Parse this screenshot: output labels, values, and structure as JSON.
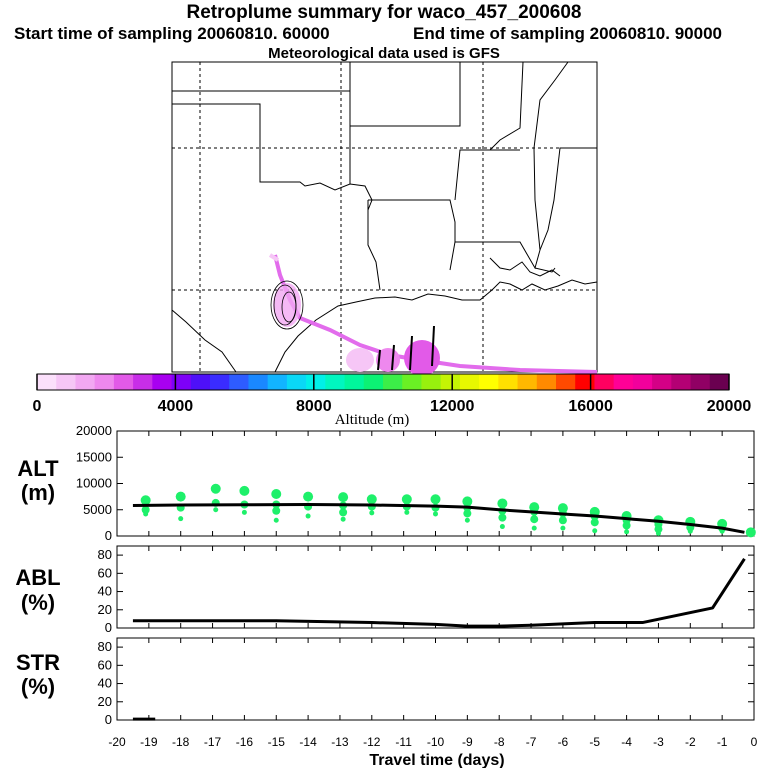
{
  "header": {
    "title": "Retroplume summary for waco_457_200608",
    "start": "Start time of sampling 20060810. 60000",
    "end": "End time of sampling 20060810. 90000",
    "met": "Meteorological data used is GFS"
  },
  "colorbar": {
    "title": "Altitude (m)",
    "tick_labels": [
      "0",
      "4000",
      "8000",
      "12000",
      "16000",
      "20000"
    ],
    "colors": [
      "#fbe0fb",
      "#f6c6f6",
      "#f2a8f2",
      "#ee88ee",
      "#e25ae8",
      "#c82ee8",
      "#a800f0",
      "#7e00f8",
      "#4e10f8",
      "#3a2cff",
      "#2e5cff",
      "#1a88ff",
      "#12b4ff",
      "#0ad8f6",
      "#00f0e8",
      "#00f6c0",
      "#00f69c",
      "#0cf274",
      "#3cee48",
      "#6af024",
      "#98f00e",
      "#c4f404",
      "#e8f800",
      "#ffff00",
      "#ffe000",
      "#ffb800",
      "#ff8a00",
      "#ff4a00",
      "#ff0000",
      "#ff0060",
      "#ff0096",
      "#f2009c",
      "#d40086",
      "#b40074",
      "#900064",
      "#6a0050"
    ]
  },
  "map": {
    "lat_lines": [
      "",
      "",
      ""
    ],
    "lon_lines": [
      "",
      "",
      ""
    ]
  },
  "panels": {
    "alt": {
      "label_line1": "ALT",
      "label_line2": "(m)",
      "y_ticks": [
        "20000",
        "15000",
        "10000",
        "5000",
        "0"
      ]
    },
    "abl": {
      "label_line1": "ABL",
      "label_line2": "(%)",
      "y_ticks": [
        "80",
        "60",
        "40",
        "20",
        "0"
      ]
    },
    "str": {
      "label_line1": "STR",
      "label_line2": "(%)",
      "y_ticks": [
        "80",
        "60",
        "40",
        "20",
        "0"
      ]
    }
  },
  "xaxis": {
    "title": "Travel time (days)",
    "ticks": [
      "-20",
      "-19",
      "-18",
      "-17",
      "-16",
      "-15",
      "-14",
      "-13",
      "-12",
      "-11",
      "-10",
      "-9",
      "-8",
      "-7",
      "-6",
      "-5",
      "-4",
      "-3",
      "-2",
      "-1",
      "0"
    ]
  },
  "chart_data": {
    "type": "line",
    "title": "Retroplume summary for waco_457_200608",
    "xlabel": "Travel time (days)",
    "xlim": [
      -20,
      0
    ],
    "series": [
      {
        "name": "ALT",
        "ylabel": "ALT (m)",
        "ylim": [
          0,
          20000
        ],
        "x": [
          -19.5,
          -18,
          -16,
          -14,
          -12,
          -10,
          -9,
          -8,
          -7,
          -6,
          -5,
          -4,
          -3,
          -2,
          -1,
          -0.3
        ],
        "values": [
          5800,
          5900,
          5950,
          6000,
          5900,
          5700,
          5500,
          5000,
          4600,
          4200,
          3800,
          3300,
          2800,
          2200,
          1500,
          700
        ],
        "clusters": [
          {
            "x": -19.1,
            "values": [
              6800,
              5000,
              4200
            ]
          },
          {
            "x": -18.0,
            "values": [
              7500,
              5400,
              3300
            ]
          },
          {
            "x": -16.9,
            "values": [
              9000,
              6300,
              5000
            ]
          },
          {
            "x": -16.0,
            "values": [
              8600,
              6000,
              4500
            ]
          },
          {
            "x": -15.0,
            "values": [
              8000,
              6000,
              4800,
              3000
            ]
          },
          {
            "x": -14.0,
            "values": [
              7500,
              5600,
              3800
            ]
          },
          {
            "x": -12.9,
            "values": [
              7400,
              5800,
              4500,
              3200
            ]
          },
          {
            "x": -12.0,
            "values": [
              7000,
              5600,
              4400
            ]
          },
          {
            "x": -10.9,
            "values": [
              7000,
              5600,
              4500
            ]
          },
          {
            "x": -10.0,
            "values": [
              7000,
              5400,
              4200
            ]
          },
          {
            "x": -9.0,
            "values": [
              6600,
              5400,
              4300,
              3000
            ]
          },
          {
            "x": -7.9,
            "values": [
              6200,
              4800,
              3500,
              1800
            ]
          },
          {
            "x": -6.9,
            "values": [
              5500,
              4600,
              3200,
              1500
            ]
          },
          {
            "x": -6.0,
            "values": [
              5300,
              4300,
              3000,
              1500
            ]
          },
          {
            "x": -5.0,
            "values": [
              4600,
              3700,
              2600,
              1000
            ]
          },
          {
            "x": -4.0,
            "values": [
              3800,
              3000,
              2000,
              800
            ]
          },
          {
            "x": -3.0,
            "values": [
              3000,
              2200,
              1300,
              500
            ]
          },
          {
            "x": -2.0,
            "values": [
              2700,
              1600,
              900
            ]
          },
          {
            "x": -1.0,
            "values": [
              2300,
              1500,
              900
            ]
          },
          {
            "x": -0.1,
            "values": [
              700
            ]
          }
        ]
      },
      {
        "name": "ABL",
        "ylabel": "ABL (%)",
        "ylim": [
          0,
          90
        ],
        "x": [
          -19.5,
          -15,
          -12,
          -10,
          -9,
          -8,
          -7,
          -5,
          -3.5,
          -1.3,
          -0.3
        ],
        "values": [
          8,
          8,
          6,
          4,
          2,
          2,
          3,
          6,
          6,
          22,
          76
        ]
      },
      {
        "name": "STR",
        "ylabel": "STR (%)",
        "ylim": [
          0,
          90
        ],
        "x": [
          -19.5,
          -18.8
        ],
        "values": [
          1,
          1
        ]
      }
    ]
  }
}
